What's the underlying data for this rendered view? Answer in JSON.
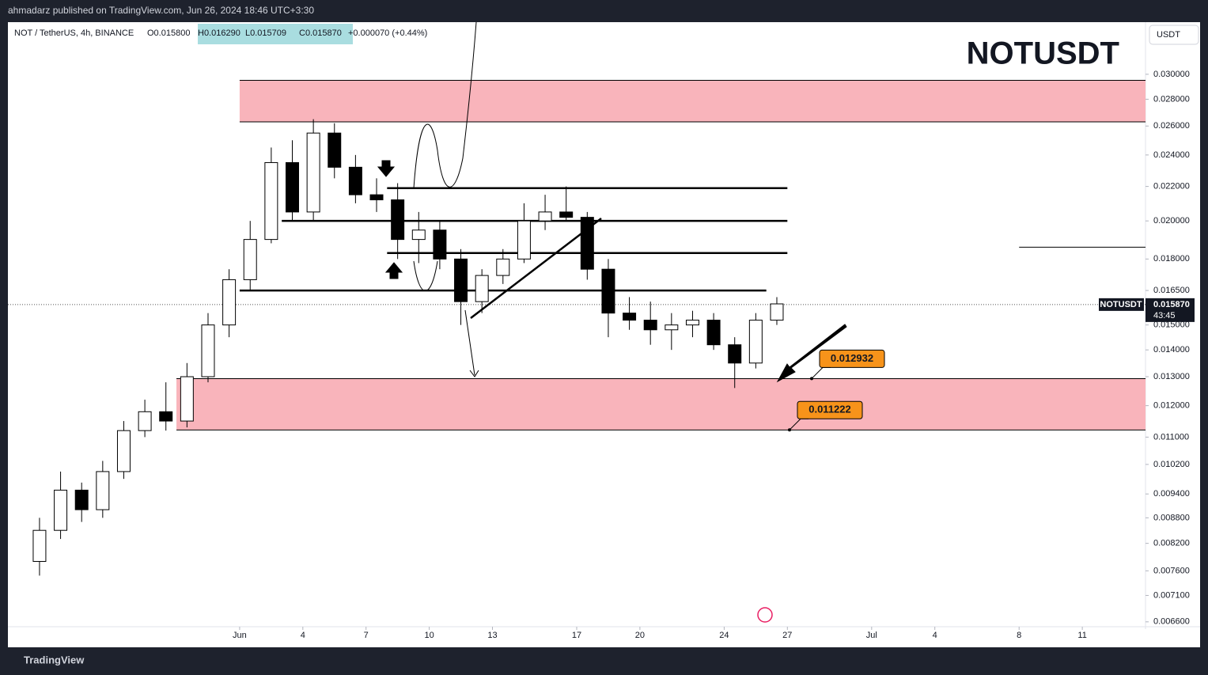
{
  "header": {
    "publisher": "ahmadarz published on TradingView.com, Jun 26, 2024 18:46 UTC+3:30",
    "footer": "TradingView",
    "currency_button": "USDT"
  },
  "chart_data": {
    "type": "candlestick",
    "title": "NOTUSDT",
    "symbol_info": "NOT / TetherUS, 4h, BINANCE",
    "ohlc_texts": [
      "O0.015800",
      "H0.016290",
      "L0.015709",
      "C0.015870",
      "+0.000070 (+0.44%)"
    ],
    "log_scale": true,
    "ylim": [
      0.00654,
      0.0345
    ],
    "xlim": [
      "2024-05-21",
      "2024-07-14"
    ],
    "yticks": [
      {
        "value": 0.03,
        "label": "0.030000"
      },
      {
        "value": 0.028,
        "label": "0.028000"
      },
      {
        "value": 0.026,
        "label": "0.026000"
      },
      {
        "value": 0.024,
        "label": "0.024000"
      },
      {
        "value": 0.022,
        "label": "0.022000"
      },
      {
        "value": 0.02,
        "label": "0.020000"
      },
      {
        "value": 0.018,
        "label": "0.018000"
      },
      {
        "value": 0.0165,
        "label": "0.016500"
      },
      {
        "value": 0.015,
        "label": "0.015000"
      },
      {
        "value": 0.014,
        "label": "0.014000"
      },
      {
        "value": 0.013,
        "label": "0.013000"
      },
      {
        "value": 0.012,
        "label": "0.012000"
      },
      {
        "value": 0.011,
        "label": "0.011000"
      },
      {
        "value": 0.0102,
        "label": "0.010200"
      },
      {
        "value": 0.0094,
        "label": "0.009400"
      },
      {
        "value": 0.0088,
        "label": "0.008800"
      },
      {
        "value": 0.0082,
        "label": "0.008200"
      },
      {
        "value": 0.0076,
        "label": "0.007600"
      },
      {
        "value": 0.0071,
        "label": "0.007100"
      },
      {
        "value": 0.0066,
        "label": "0.006600"
      }
    ],
    "xticks": [
      {
        "value": "2024-06-01",
        "label": "Jun"
      },
      {
        "value": "2024-06-04",
        "label": "4"
      },
      {
        "value": "2024-06-07",
        "label": "7"
      },
      {
        "value": "2024-06-10",
        "label": "10"
      },
      {
        "value": "2024-06-13",
        "label": "13"
      },
      {
        "value": "2024-06-17",
        "label": "17"
      },
      {
        "value": "2024-06-20",
        "label": "20"
      },
      {
        "value": "2024-06-24",
        "label": "24"
      },
      {
        "value": "2024-06-27",
        "label": "27"
      },
      {
        "value": "2024-07-01",
        "label": "Jul"
      },
      {
        "value": "2024-07-04",
        "label": "4"
      },
      {
        "value": "2024-07-08",
        "label": "8"
      },
      {
        "value": "2024-07-11",
        "label": "11"
      }
    ],
    "up_color": "#ffffff",
    "down_color": "#000000",
    "candles": [
      {
        "date": "2024-05-22",
        "open": 0.0078,
        "high": 0.0088,
        "low": 0.0075,
        "close": 0.0085
      },
      {
        "date": "2024-05-23",
        "open": 0.0085,
        "high": 0.01,
        "low": 0.0083,
        "close": 0.0095
      },
      {
        "date": "2024-05-24",
        "open": 0.0095,
        "high": 0.0097,
        "low": 0.0087,
        "close": 0.009
      },
      {
        "date": "2024-05-25",
        "open": 0.009,
        "high": 0.0103,
        "low": 0.0088,
        "close": 0.01
      },
      {
        "date": "2024-05-26",
        "open": 0.01,
        "high": 0.0115,
        "low": 0.0098,
        "close": 0.0112
      },
      {
        "date": "2024-05-27",
        "open": 0.0112,
        "high": 0.0122,
        "low": 0.011,
        "close": 0.0118
      },
      {
        "date": "2024-05-28",
        "open": 0.0118,
        "high": 0.0128,
        "low": 0.0112,
        "close": 0.0115
      },
      {
        "date": "2024-05-29",
        "open": 0.0115,
        "high": 0.0135,
        "low": 0.0113,
        "close": 0.013
      },
      {
        "date": "2024-05-30",
        "open": 0.013,
        "high": 0.0155,
        "low": 0.0128,
        "close": 0.015
      },
      {
        "date": "2024-05-31",
        "open": 0.015,
        "high": 0.0175,
        "low": 0.0145,
        "close": 0.017
      },
      {
        "date": "2024-06-01",
        "open": 0.017,
        "high": 0.02,
        "low": 0.0165,
        "close": 0.019
      },
      {
        "date": "2024-06-02",
        "open": 0.019,
        "high": 0.0245,
        "low": 0.0188,
        "close": 0.0235
      },
      {
        "date": "2024-06-03",
        "open": 0.0235,
        "high": 0.025,
        "low": 0.02,
        "close": 0.0205
      },
      {
        "date": "2024-06-04",
        "open": 0.0205,
        "high": 0.0265,
        "low": 0.02,
        "close": 0.0255
      },
      {
        "date": "2024-06-05",
        "open": 0.0255,
        "high": 0.0262,
        "low": 0.0225,
        "close": 0.0232
      },
      {
        "date": "2024-06-06",
        "open": 0.0232,
        "high": 0.024,
        "low": 0.021,
        "close": 0.0215
      },
      {
        "date": "2024-06-07",
        "open": 0.0215,
        "high": 0.0225,
        "low": 0.0205,
        "close": 0.0212
      },
      {
        "date": "2024-06-08",
        "open": 0.0212,
        "high": 0.0222,
        "low": 0.018,
        "close": 0.019
      },
      {
        "date": "2024-06-09",
        "open": 0.019,
        "high": 0.0205,
        "low": 0.0178,
        "close": 0.0195
      },
      {
        "date": "2024-06-10",
        "open": 0.0195,
        "high": 0.02,
        "low": 0.0175,
        "close": 0.018
      },
      {
        "date": "2024-06-11",
        "open": 0.018,
        "high": 0.0185,
        "low": 0.015,
        "close": 0.016
      },
      {
        "date": "2024-06-12",
        "open": 0.016,
        "high": 0.0175,
        "low": 0.0155,
        "close": 0.0172
      },
      {
        "date": "2024-06-13",
        "open": 0.0172,
        "high": 0.0185,
        "low": 0.0168,
        "close": 0.018
      },
      {
        "date": "2024-06-14",
        "open": 0.018,
        "high": 0.021,
        "low": 0.0178,
        "close": 0.02
      },
      {
        "date": "2024-06-15",
        "open": 0.02,
        "high": 0.0215,
        "low": 0.0195,
        "close": 0.0205
      },
      {
        "date": "2024-06-16",
        "open": 0.0205,
        "high": 0.022,
        "low": 0.02,
        "close": 0.0202
      },
      {
        "date": "2024-06-17",
        "open": 0.0202,
        "high": 0.0205,
        "low": 0.017,
        "close": 0.0175
      },
      {
        "date": "2024-06-18",
        "open": 0.0175,
        "high": 0.018,
        "low": 0.0145,
        "close": 0.0155
      },
      {
        "date": "2024-06-19",
        "open": 0.0155,
        "high": 0.0162,
        "low": 0.0148,
        "close": 0.0152
      },
      {
        "date": "2024-06-20",
        "open": 0.0152,
        "high": 0.016,
        "low": 0.0142,
        "close": 0.0148
      },
      {
        "date": "2024-06-21",
        "open": 0.0148,
        "high": 0.0155,
        "low": 0.014,
        "close": 0.015
      },
      {
        "date": "2024-06-22",
        "open": 0.015,
        "high": 0.0156,
        "low": 0.0145,
        "close": 0.0152
      },
      {
        "date": "2024-06-23",
        "open": 0.0152,
        "high": 0.0155,
        "low": 0.014,
        "close": 0.0142
      },
      {
        "date": "2024-06-24",
        "open": 0.0142,
        "high": 0.0145,
        "low": 0.0126,
        "close": 0.0135
      },
      {
        "date": "2024-06-25",
        "open": 0.0135,
        "high": 0.0155,
        "low": 0.0133,
        "close": 0.0152
      },
      {
        "date": "2024-06-26",
        "open": 0.0152,
        "high": 0.0162,
        "low": 0.015,
        "close": 0.0159
      }
    ],
    "zones": [
      {
        "from": "2024-06-01",
        "low": 0.0263,
        "high": 0.0295,
        "color": "#f9b4bb"
      },
      {
        "from": "2024-05-29",
        "low": 0.01122,
        "high": 0.01293,
        "color": "#f9b4bb"
      }
    ],
    "levels": [
      {
        "value": 0.0219,
        "from": "2024-06-08",
        "to": "2024-06-27"
      },
      {
        "value": 0.02,
        "from": "2024-06-03",
        "to": "2024-06-27"
      },
      {
        "value": 0.0183,
        "from": "2024-06-08",
        "to": "2024-06-27"
      },
      {
        "value": 0.0165,
        "from": "2024-06-01",
        "to": "2024-06-26"
      },
      {
        "value": 0.0186,
        "from": "2024-07-08",
        "to": "2024-07-14"
      }
    ],
    "last_price": {
      "symbol": "NOTUSDT",
      "value": 0.01587,
      "label": "0.015870",
      "countdown": "43:45"
    },
    "callouts": [
      {
        "value": 0.012932,
        "label": "0.012932"
      },
      {
        "value": 0.011222,
        "label": "0.011222"
      }
    ]
  }
}
